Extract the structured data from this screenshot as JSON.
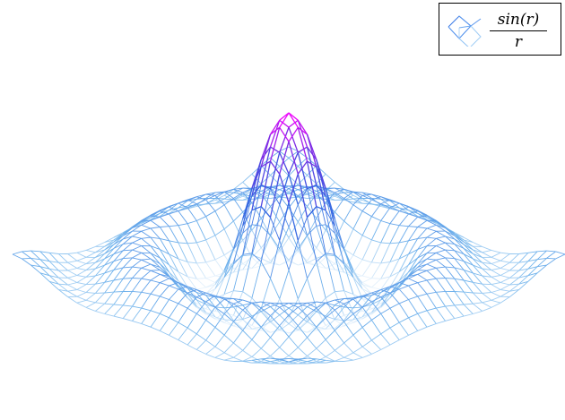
{
  "chart_data": {
    "type": "surface-wireframe",
    "function": "sin(r)/r",
    "x_range": [
      -10,
      10
    ],
    "y_range": [
      -10,
      10
    ],
    "z_range": [
      -0.22,
      1.0
    ],
    "grid_lines": 30,
    "axes_visible": false,
    "colormap": [
      "#eef6fd",
      "#71b4ec",
      "#2f5fe0",
      "#7b2de4",
      "#ff00ff"
    ],
    "legend": {
      "placement": "top-right",
      "icon": "surface-swatch-icon",
      "label_numerator": "sin(r)",
      "label_denominator": "r"
    }
  }
}
